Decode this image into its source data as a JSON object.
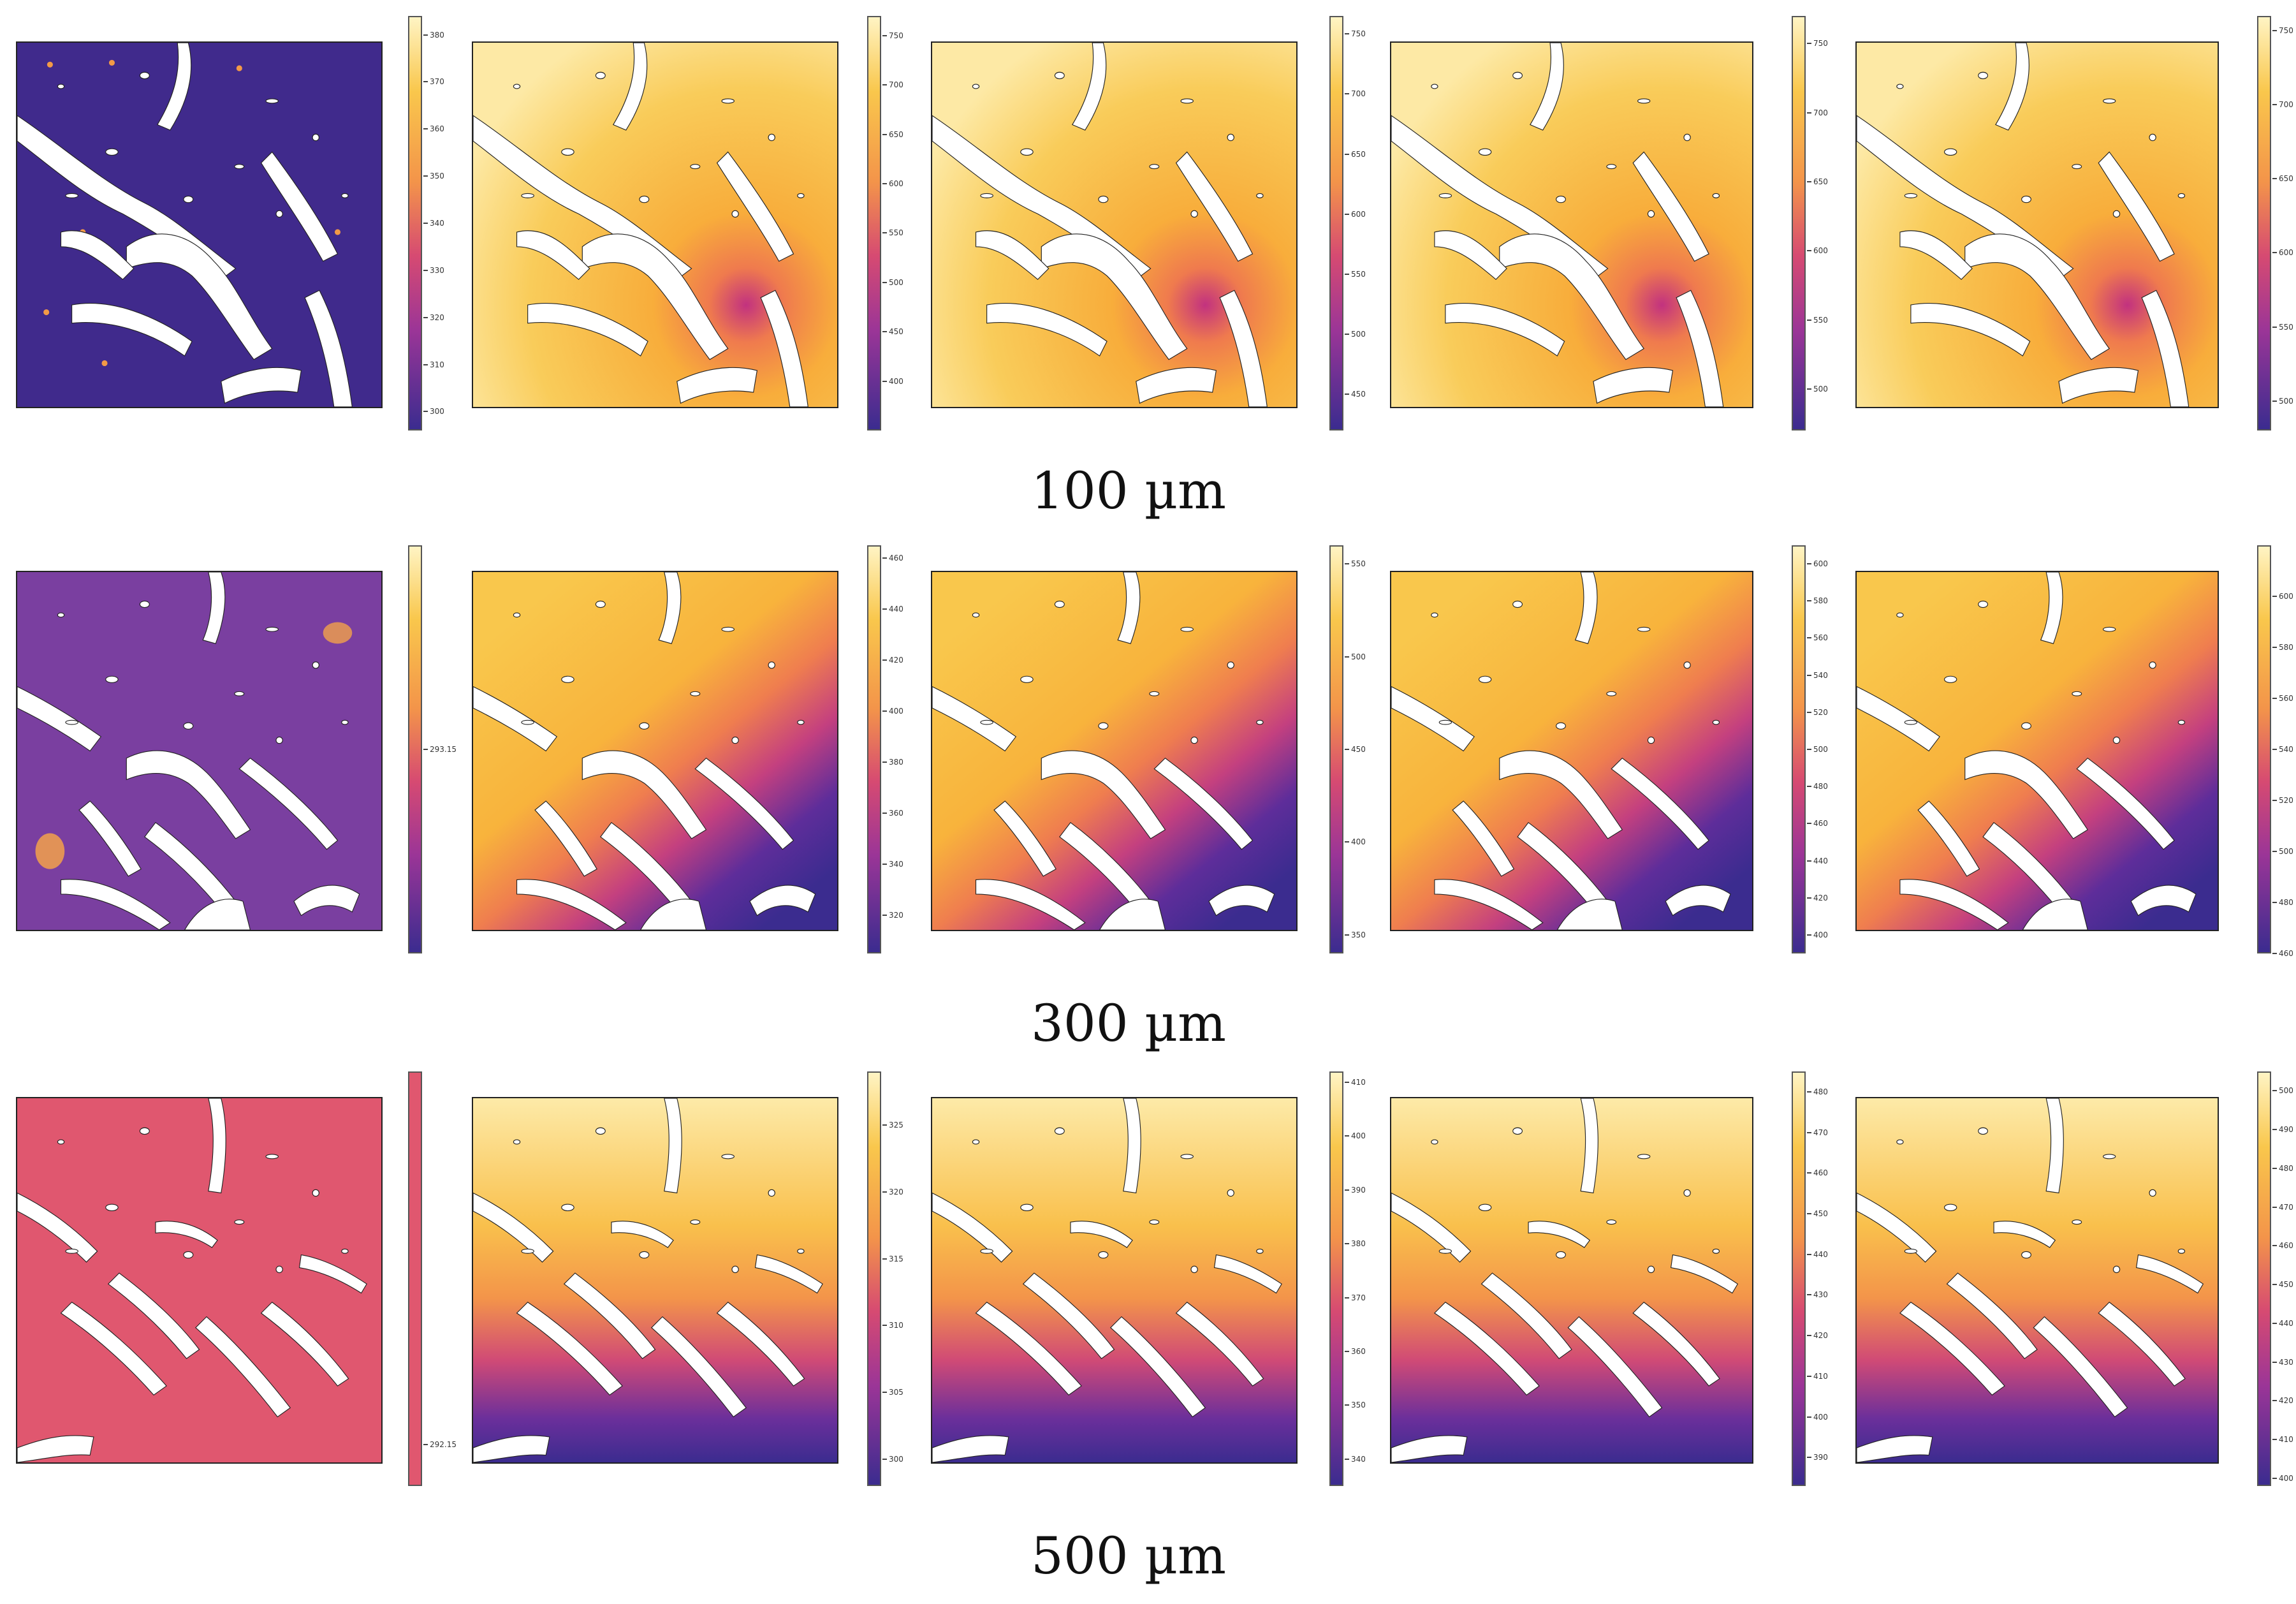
{
  "figure": {
    "rows": [
      {
        "caption": "100 µm",
        "panels": [
          {
            "colorbar": {
              "min": 296,
              "max": 384,
              "ticks": [
                "380",
                "370",
                "360",
                "350",
                "340",
                "330",
                "320",
                "310",
                "300"
              ]
            },
            "field": "cold_uniform"
          },
          {
            "colorbar": {
              "min": 350,
              "max": 770,
              "ticks": [
                "750",
                "700",
                "650",
                "600",
                "550",
                "500",
                "450",
                "400"
              ]
            },
            "field": "hot_warm"
          },
          {
            "colorbar": {
              "min": 420,
              "max": 765,
              "ticks": [
                "750",
                "700",
                "650",
                "600",
                "550",
                "500",
                "450"
              ]
            },
            "field": "hot_warm"
          },
          {
            "colorbar": {
              "min": 470,
              "max": 770,
              "ticks": [
                "750",
                "700",
                "650",
                "600",
                "550",
                "500"
              ]
            },
            "field": "hot_warm"
          },
          {
            "colorbar": {
              "min": 480,
              "max": 760,
              "ticks": [
                "750",
                "700",
                "650",
                "600",
                "550",
                "500"
              ]
            },
            "field": "hot_warm"
          }
        ]
      },
      {
        "caption": "300 µm",
        "panels": [
          {
            "colorbar": {
              "min": 292,
              "max": 294.3,
              "ticks": [
                "293.15"
              ]
            },
            "field": "mid_uniform"
          },
          {
            "colorbar": {
              "min": 305,
              "max": 465,
              "ticks": [
                "460",
                "440",
                "420",
                "400",
                "380",
                "360",
                "340",
                "320"
              ]
            },
            "field": "gradient"
          },
          {
            "colorbar": {
              "min": 340,
              "max": 560,
              "ticks": [
                "550",
                "500",
                "450",
                "400",
                "350"
              ]
            },
            "field": "gradient"
          },
          {
            "colorbar": {
              "min": 390,
              "max": 610,
              "ticks": [
                "600",
                "580",
                "560",
                "540",
                "520",
                "500",
                "480",
                "460",
                "440",
                "420",
                "400"
              ]
            },
            "field": "gradient"
          },
          {
            "colorbar": {
              "min": 460,
              "max": 620,
              "ticks": [
                "600",
                "580",
                "560",
                "540",
                "520",
                "500",
                "480",
                "460"
              ]
            },
            "field": "gradient"
          }
        ]
      },
      {
        "caption": "500 µm",
        "panels": [
          {
            "colorbar": {
              "min": 291.9,
              "max": 294.4,
              "ticks": [
                "292.15"
              ]
            },
            "field": "pink_uniform"
          },
          {
            "colorbar": {
              "min": 298,
              "max": 329,
              "ticks": [
                "325",
                "320",
                "315",
                "310",
                "305",
                "300"
              ]
            },
            "field": "gradient_wide"
          },
          {
            "colorbar": {
              "min": 335,
              "max": 412,
              "ticks": [
                "410",
                "400",
                "390",
                "380",
                "370",
                "360",
                "350",
                "340"
              ]
            },
            "field": "gradient_wide"
          },
          {
            "colorbar": {
              "min": 383,
              "max": 485,
              "ticks": [
                "480",
                "470",
                "460",
                "450",
                "440",
                "430",
                "420",
                "410",
                "400",
                "390"
              ]
            },
            "field": "gradient_wide"
          },
          {
            "colorbar": {
              "min": 398,
              "max": 505,
              "ticks": [
                "500",
                "490",
                "480",
                "470",
                "460",
                "450",
                "440",
                "430",
                "420",
                "410",
                "400"
              ]
            },
            "field": "gradient_wide"
          }
        ]
      }
    ]
  },
  "chart_data": {
    "type": "heatmap",
    "colormap": "plasma",
    "colors": {
      "low": "#3b2c8f",
      "mid": "#e05a6d",
      "high": "#fff4c4"
    },
    "rows": [
      {
        "label": "100 µm",
        "colorbar_ranges": [
          [
            296,
            384
          ],
          [
            350,
            770
          ],
          [
            420,
            765
          ],
          [
            470,
            770
          ],
          [
            480,
            760
          ]
        ]
      },
      {
        "label": "300 µm",
        "colorbar_ranges": [
          [
            292,
            294.3
          ],
          [
            305,
            465
          ],
          [
            340,
            560
          ],
          [
            390,
            610
          ],
          [
            460,
            620
          ]
        ]
      },
      {
        "label": "500 µm",
        "colorbar_ranges": [
          [
            291.9,
            294.4
          ],
          [
            298,
            329
          ],
          [
            335,
            412
          ],
          [
            383,
            485
          ],
          [
            398,
            505
          ]
        ]
      }
    ]
  }
}
